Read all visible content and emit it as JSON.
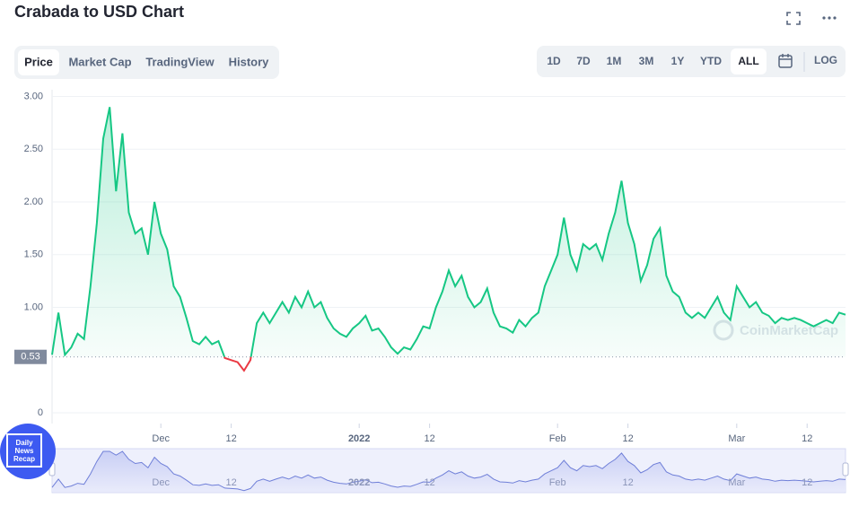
{
  "header": {
    "title": "Crabada to USD Chart"
  },
  "tabs": {
    "items": [
      "Price",
      "Market Cap",
      "TradingView",
      "History"
    ],
    "active": "Price"
  },
  "ranges": {
    "items": [
      "1D",
      "7D",
      "1M",
      "3M",
      "1Y",
      "YTD",
      "ALL"
    ],
    "active": "ALL",
    "log": "LOG"
  },
  "watermark": "CoinMarketCap",
  "badge": [
    "Daily",
    "News",
    "Recap"
  ],
  "chart_data": {
    "type": "line",
    "categories": [
      null,
      null,
      null,
      null,
      null,
      null,
      null,
      null,
      null,
      null,
      null,
      null,
      null,
      null,
      null,
      null,
      null,
      "Dec",
      null,
      null,
      null,
      null,
      null,
      null,
      null,
      null,
      null,
      null,
      "12",
      null,
      null,
      null,
      null,
      null,
      null,
      null,
      null,
      null,
      null,
      null,
      null,
      null,
      null,
      null,
      null,
      null,
      null,
      null,
      "2022",
      null,
      null,
      null,
      null,
      null,
      null,
      null,
      null,
      null,
      null,
      "12",
      null,
      null,
      null,
      null,
      null,
      null,
      null,
      null,
      null,
      null,
      null,
      null,
      null,
      null,
      null,
      null,
      null,
      null,
      null,
      "Feb",
      null,
      null,
      null,
      null,
      null,
      null,
      null,
      null,
      null,
      null,
      "12",
      null,
      null,
      null,
      null,
      null,
      null,
      null,
      null,
      null,
      null,
      null,
      null,
      null,
      null,
      null,
      null,
      "Mar",
      null,
      null,
      null,
      null,
      null,
      null,
      null,
      null,
      null,
      null,
      "12",
      null,
      null,
      null,
      null,
      null,
      null
    ],
    "values": [
      0.55,
      0.95,
      0.55,
      0.62,
      0.75,
      0.7,
      1.2,
      1.8,
      2.6,
      2.9,
      2.1,
      2.65,
      1.9,
      1.7,
      1.75,
      1.5,
      2.0,
      1.7,
      1.55,
      1.2,
      1.1,
      0.9,
      0.68,
      0.65,
      0.72,
      0.65,
      0.68,
      0.52,
      0.5,
      0.48,
      0.4,
      0.5,
      0.85,
      0.95,
      0.85,
      0.95,
      1.05,
      0.95,
      1.1,
      1.0,
      1.15,
      1.0,
      1.05,
      0.9,
      0.8,
      0.75,
      0.72,
      0.8,
      0.85,
      0.92,
      0.78,
      0.8,
      0.72,
      0.62,
      0.56,
      0.62,
      0.6,
      0.7,
      0.82,
      0.8,
      1.0,
      1.15,
      1.35,
      1.2,
      1.3,
      1.1,
      1.0,
      1.05,
      1.18,
      0.95,
      0.82,
      0.8,
      0.76,
      0.88,
      0.82,
      0.9,
      0.95,
      1.2,
      1.35,
      1.5,
      1.85,
      1.5,
      1.35,
      1.6,
      1.55,
      1.6,
      1.45,
      1.7,
      1.9,
      2.2,
      1.8,
      1.6,
      1.25,
      1.4,
      1.65,
      1.75,
      1.3,
      1.15,
      1.1,
      0.95,
      0.9,
      0.95,
      0.9,
      1.0,
      1.1,
      0.95,
      0.88,
      1.2,
      1.1,
      1.0,
      1.05,
      0.95,
      0.92,
      0.85,
      0.9,
      0.88,
      0.9,
      0.88,
      0.85,
      0.82,
      0.85,
      0.88,
      0.85,
      0.95,
      0.93
    ],
    "color": "#16c784",
    "below_color": "#ea3943",
    "navigator_color": "#6f7fd8",
    "reference_line": {
      "value": 0.53,
      "label": "0.53"
    },
    "ylim": [
      0,
      3.1
    ],
    "yticks": [
      0,
      {
        "value": 1,
        "label": "1.00"
      },
      {
        "value": 1.5,
        "label": "1.50"
      },
      {
        "value": 2,
        "label": "2.00"
      },
      {
        "value": 2.5,
        "label": "2.50"
      },
      {
        "value": 3,
        "label": "3.00"
      }
    ],
    "grid": true
  }
}
